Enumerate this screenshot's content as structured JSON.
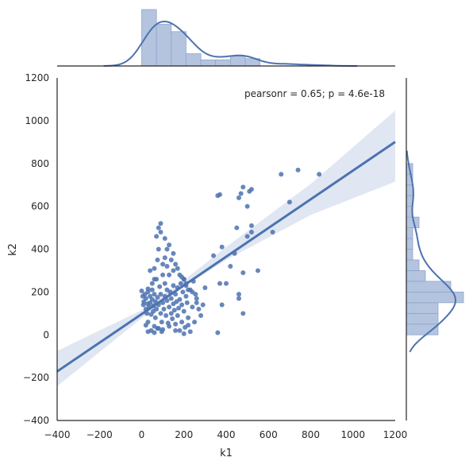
{
  "chart_data": {
    "type": "scatter",
    "subtype": "jointplot",
    "xlabel": "k1",
    "ylabel": "k2",
    "xlim": [
      -400,
      1200
    ],
    "ylim": [
      -400,
      1200
    ],
    "x_ticks": [
      "−400",
      "−200",
      "0",
      "200",
      "400",
      "600",
      "800",
      "1000",
      "1200"
    ],
    "y_ticks": [
      "−400",
      "−200",
      "0",
      "200",
      "400",
      "600",
      "800",
      "1000",
      "1200"
    ],
    "annotation": "pearsonr = 0.65; p = 4.6e-18",
    "grid": false,
    "colors": {
      "points": "#4c72b0",
      "regression_line": "#4c72b0",
      "confidence_band": "#dbe3f0",
      "histogram_fill": "#b4c4df",
      "histogram_edge": "#8ea6cd",
      "axis": "#262626"
    },
    "regression": {
      "x_range": [
        -400,
        1200
      ],
      "slope": 0.67,
      "intercept": 97
    },
    "confidence_band": [
      {
        "x": -400,
        "lower": -240,
        "upper": -75
      },
      {
        "x": 0,
        "lower": 78,
        "upper": 115
      },
      {
        "x": 200,
        "lower": 225,
        "upper": 255
      },
      {
        "x": 400,
        "lower": 350,
        "upper": 410
      },
      {
        "x": 800,
        "lower": 560,
        "upper": 705
      },
      {
        "x": 1200,
        "lower": 715,
        "upper": 1048
      }
    ],
    "points": [
      [
        0,
        205
      ],
      [
        5,
        180
      ],
      [
        8,
        140
      ],
      [
        10,
        155
      ],
      [
        15,
        190
      ],
      [
        20,
        120
      ],
      [
        20,
        170
      ],
      [
        25,
        100
      ],
      [
        28,
        145
      ],
      [
        30,
        200
      ],
      [
        30,
        60
      ],
      [
        35,
        130
      ],
      [
        40,
        150
      ],
      [
        40,
        180
      ],
      [
        45,
        95
      ],
      [
        50,
        165
      ],
      [
        50,
        210
      ],
      [
        55,
        110
      ],
      [
        55,
        135
      ],
      [
        60,
        190
      ],
      [
        60,
        40
      ],
      [
        65,
        80
      ],
      [
        65,
        155
      ],
      [
        70,
        120
      ],
      [
        70,
        260
      ],
      [
        75,
        175
      ],
      [
        80,
        30
      ],
      [
        80,
        140
      ],
      [
        85,
        225
      ],
      [
        90,
        100
      ],
      [
        90,
        190
      ],
      [
        95,
        60
      ],
      [
        100,
        150
      ],
      [
        100,
        25
      ],
      [
        105,
        120
      ],
      [
        110,
        180
      ],
      [
        110,
        240
      ],
      [
        115,
        90
      ],
      [
        120,
        160
      ],
      [
        120,
        210
      ],
      [
        125,
        55
      ],
      [
        130,
        130
      ],
      [
        130,
        280
      ],
      [
        135,
        200
      ],
      [
        140,
        100
      ],
      [
        140,
        170
      ],
      [
        145,
        75
      ],
      [
        150,
        145
      ],
      [
        150,
        230
      ],
      [
        155,
        115
      ],
      [
        160,
        190
      ],
      [
        160,
        50
      ],
      [
        165,
        155
      ],
      [
        170,
        90
      ],
      [
        170,
        220
      ],
      [
        175,
        125
      ],
      [
        180,
        20
      ],
      [
        180,
        165
      ],
      [
        185,
        240
      ],
      [
        190,
        60
      ],
      [
        190,
        140
      ],
      [
        195,
        200
      ],
      [
        200,
        110
      ],
      [
        200,
        260
      ],
      [
        205,
        35
      ],
      [
        210,
        180
      ],
      [
        210,
        230
      ],
      [
        215,
        150
      ],
      [
        220,
        80
      ],
      [
        230,
        210
      ],
      [
        230,
        15
      ],
      [
        240,
        130
      ],
      [
        245,
        250
      ],
      [
        250,
        60
      ],
      [
        255,
        190
      ],
      [
        260,
        170
      ],
      [
        270,
        120
      ],
      [
        280,
        90
      ],
      [
        290,
        140
      ],
      [
        300,
        220
      ],
      [
        20,
        45
      ],
      [
        30,
        15
      ],
      [
        45,
        20
      ],
      [
        60,
        10
      ],
      [
        75,
        30
      ],
      [
        95,
        15
      ],
      [
        130,
        40
      ],
      [
        160,
        20
      ],
      [
        200,
        5
      ],
      [
        220,
        45
      ],
      [
        30,
        215
      ],
      [
        50,
        240
      ],
      [
        60,
        260
      ],
      [
        100,
        330
      ],
      [
        80,
        400
      ],
      [
        70,
        460
      ],
      [
        90,
        480
      ],
      [
        110,
        450
      ],
      [
        110,
        360
      ],
      [
        120,
        400
      ],
      [
        130,
        420
      ],
      [
        140,
        350
      ],
      [
        150,
        300
      ],
      [
        100,
        280
      ],
      [
        60,
        310
      ],
      [
        80,
        500
      ],
      [
        90,
        520
      ],
      [
        40,
        300
      ],
      [
        75,
        350
      ],
      [
        120,
        320
      ],
      [
        150,
        380
      ],
      [
        160,
        330
      ],
      [
        170,
        310
      ],
      [
        180,
        280
      ],
      [
        190,
        270
      ],
      [
        200,
        260
      ],
      [
        210,
        240
      ],
      [
        220,
        210
      ],
      [
        240,
        200
      ],
      [
        260,
        150
      ],
      [
        360,
        10
      ],
      [
        370,
        240
      ],
      [
        380,
        140
      ],
      [
        460,
        190
      ],
      [
        460,
        170
      ],
      [
        480,
        100
      ],
      [
        480,
        290
      ],
      [
        500,
        460
      ],
      [
        520,
        480
      ],
      [
        550,
        300
      ],
      [
        360,
        650
      ],
      [
        370,
        655
      ],
      [
        460,
        640
      ],
      [
        470,
        660
      ],
      [
        480,
        690
      ],
      [
        500,
        600
      ],
      [
        510,
        670
      ],
      [
        520,
        680
      ],
      [
        520,
        510
      ],
      [
        620,
        480
      ],
      [
        660,
        750
      ],
      [
        700,
        620
      ],
      [
        740,
        770
      ],
      [
        840,
        750
      ],
      [
        340,
        370
      ],
      [
        380,
        410
      ],
      [
        450,
        500
      ],
      [
        400,
        240
      ],
      [
        420,
        320
      ],
      [
        440,
        380
      ]
    ],
    "x_marginal_hist": {
      "bin_edges": [
        0,
        70,
        140,
        210,
        280,
        350,
        420,
        490,
        560
      ],
      "counts": [
        46,
        34,
        28,
        10,
        5,
        5,
        8,
        6
      ]
    },
    "y_marginal_hist": {
      "bin_edges": [
        0,
        50,
        100,
        150,
        200,
        250,
        300,
        350,
        400,
        450,
        500,
        550,
        600,
        650,
        700,
        750,
        800
      ],
      "counts": [
        5,
        5,
        5,
        9,
        7,
        3,
        2,
        1,
        1,
        1,
        2,
        1,
        1,
        1,
        1,
        1
      ]
    }
  }
}
